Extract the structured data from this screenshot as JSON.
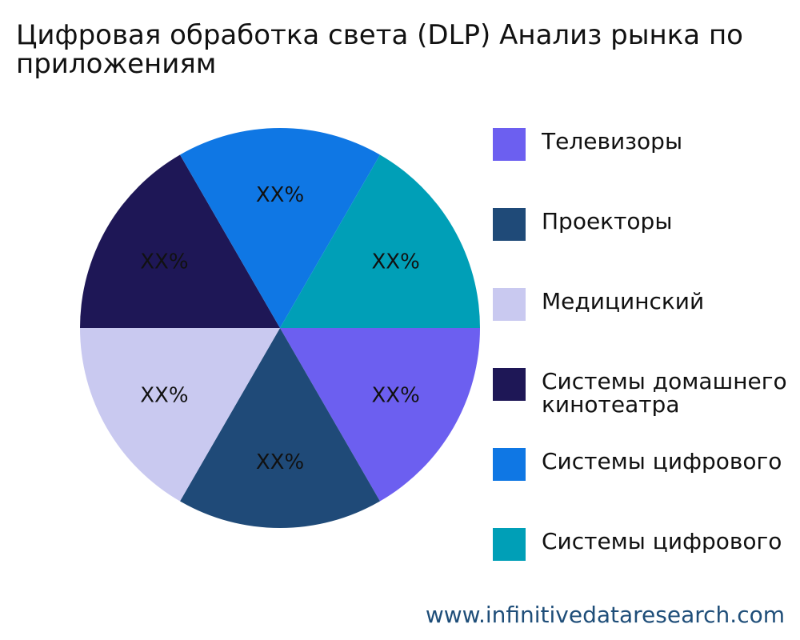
{
  "title": "Цифровая обработка света (DLP) Анализ рынка по приложениям",
  "footer": "www.infinitivedataresearch.com",
  "chart_data": {
    "type": "pie",
    "slices": [
      {
        "name": "Телевизоры",
        "value": 1,
        "label": "XX%",
        "color": "#6c5ff0"
      },
      {
        "name": "Проекторы",
        "value": 1,
        "label": "XX%",
        "color": "#1f4a78"
      },
      {
        "name": "Медицинский",
        "value": 1,
        "label": "XX%",
        "color": "#c9c9f0"
      },
      {
        "name": "Системы домашнего\nкинотеатра",
        "value": 1,
        "label": "XX%",
        "color": "#1e1756"
      },
      {
        "name": "Системы цифрового",
        "value": 1,
        "label": "XX%",
        "color": "#0f77e4"
      },
      {
        "name": "Системы цифрового",
        "value": 1,
        "label": "XX%",
        "color": "#009fb7"
      }
    ],
    "legend_position": "right"
  }
}
